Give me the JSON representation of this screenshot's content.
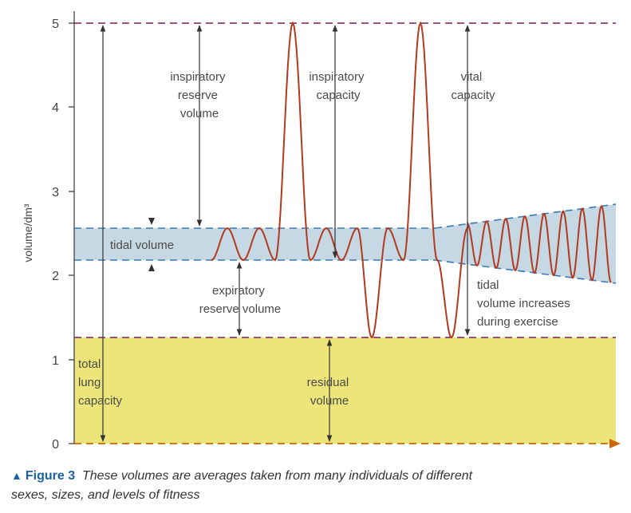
{
  "axis": {
    "y_label": "volume/dm³",
    "y_ticks": [
      "0",
      "1",
      "2",
      "3",
      "4",
      "5"
    ]
  },
  "labels": {
    "inspiratory_reserve": [
      "inspiratory",
      "reserve",
      "volume"
    ],
    "inspiratory_capacity": [
      "inspiratory",
      "capacity"
    ],
    "vital_capacity": [
      "vital",
      "capacity"
    ],
    "tidal_volume": "tidal volume",
    "expiratory_reserve": [
      "expiratory",
      "reserve volume"
    ],
    "tidal_exercise": [
      "tidal",
      "volume increases",
      "during exercise"
    ],
    "total_lung_capacity": [
      "total",
      "lung",
      "capacity"
    ],
    "residual_volume": [
      "residual",
      "volume"
    ]
  },
  "caption": {
    "figure": "Figure 3",
    "text_line1": "These volumes are averages taken from many individuals of different",
    "text_line2": "sexes, sizes, and levels of fitness"
  },
  "levels_dm3": {
    "total_lung_capacity": 5.0,
    "tidal_upper": 2.57,
    "tidal_lower": 2.18,
    "residual": 1.25
  },
  "colors": {
    "trace": "#b23a1e",
    "tidal_band": "#c5d8e3",
    "residual_fill": "#ece67a",
    "dash_purple": "#7a1f5c",
    "dash_blue": "#3b78b8",
    "axis_arrow": "#cc6600",
    "caption_accent": "#1a5fa8"
  }
}
